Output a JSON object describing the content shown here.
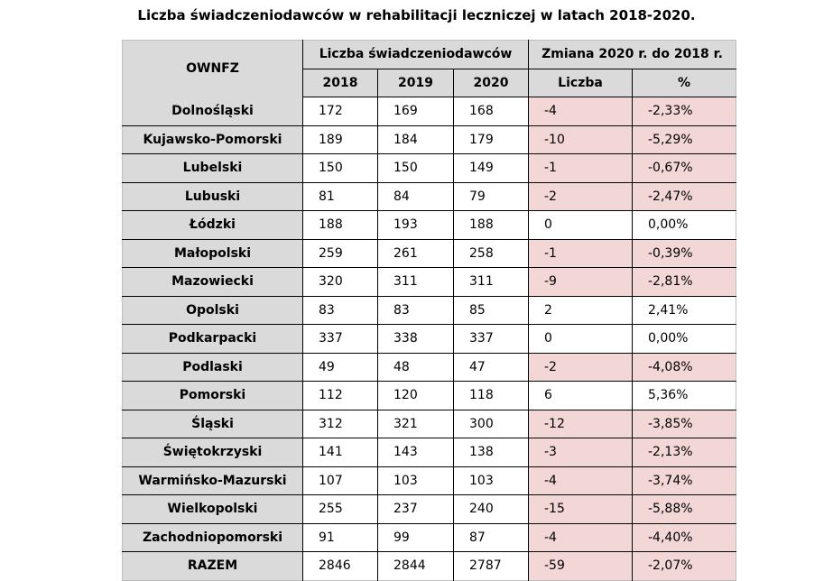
{
  "title": "Liczba świadczeniodawców w rehabilitacji leczniczej w latach 2018-2020.",
  "header": {
    "region": "OWNFZ",
    "group1": "Liczba świadczeniodawców",
    "group2": "Zmiana 2020 r. do 2018 r.",
    "cols": [
      "2018",
      "2019",
      "2020",
      "Liczba",
      "%"
    ]
  },
  "colors": {
    "negative_bg": "#f3d6d6",
    "header_bg": "#dadada"
  },
  "rows": [
    {
      "name": "Dolnośląski",
      "y2018": "172",
      "y2019": "169",
      "y2020": "168",
      "diff": "-4",
      "pct": "-2,33%",
      "neg": true
    },
    {
      "name": "Kujawsko-Pomorski",
      "y2018": "189",
      "y2019": "184",
      "y2020": "179",
      "diff": "-10",
      "pct": "-5,29%",
      "neg": true
    },
    {
      "name": "Lubelski",
      "y2018": "150",
      "y2019": "150",
      "y2020": "149",
      "diff": "-1",
      "pct": "-0,67%",
      "neg": true
    },
    {
      "name": "Lubuski",
      "y2018": "81",
      "y2019": "84",
      "y2020": "79",
      "diff": "-2",
      "pct": "-2,47%",
      "neg": true
    },
    {
      "name": "Łódzki",
      "y2018": "188",
      "y2019": "193",
      "y2020": "188",
      "diff": "0",
      "pct": "0,00%",
      "neg": false
    },
    {
      "name": "Małopolski",
      "y2018": "259",
      "y2019": "261",
      "y2020": "258",
      "diff": "-1",
      "pct": "-0,39%",
      "neg": true
    },
    {
      "name": "Mazowiecki",
      "y2018": "320",
      "y2019": "311",
      "y2020": "311",
      "diff": "-9",
      "pct": "-2,81%",
      "neg": true
    },
    {
      "name": "Opolski",
      "y2018": "83",
      "y2019": "83",
      "y2020": "85",
      "diff": "2",
      "pct": "2,41%",
      "neg": false
    },
    {
      "name": "Podkarpacki",
      "y2018": "337",
      "y2019": "338",
      "y2020": "337",
      "diff": "0",
      "pct": "0,00%",
      "neg": false
    },
    {
      "name": "Podlaski",
      "y2018": "49",
      "y2019": "48",
      "y2020": "47",
      "diff": "-2",
      "pct": "-4,08%",
      "neg": true
    },
    {
      "name": "Pomorski",
      "y2018": "112",
      "y2019": "120",
      "y2020": "118",
      "diff": "6",
      "pct": "5,36%",
      "neg": false
    },
    {
      "name": "Śląski",
      "y2018": "312",
      "y2019": "321",
      "y2020": "300",
      "diff": "-12",
      "pct": "-3,85%",
      "neg": true
    },
    {
      "name": "Świętokrzyski",
      "y2018": "141",
      "y2019": "143",
      "y2020": "138",
      "diff": "-3",
      "pct": "-2,13%",
      "neg": true
    },
    {
      "name": "Warmińsko-Mazurski",
      "y2018": "107",
      "y2019": "103",
      "y2020": "103",
      "diff": "-4",
      "pct": "-3,74%",
      "neg": true
    },
    {
      "name": "Wielkopolski",
      "y2018": "255",
      "y2019": "237",
      "y2020": "240",
      "diff": "-15",
      "pct": "-5,88%",
      "neg": true
    },
    {
      "name": "Zachodniopomorski",
      "y2018": "91",
      "y2019": "99",
      "y2020": "87",
      "diff": "-4",
      "pct": "-4,40%",
      "neg": true
    },
    {
      "name": "RAZEM",
      "y2018": "2846",
      "y2019": "2844",
      "y2020": "2787",
      "diff": "-59",
      "pct": "-2,07%",
      "neg": true
    }
  ]
}
